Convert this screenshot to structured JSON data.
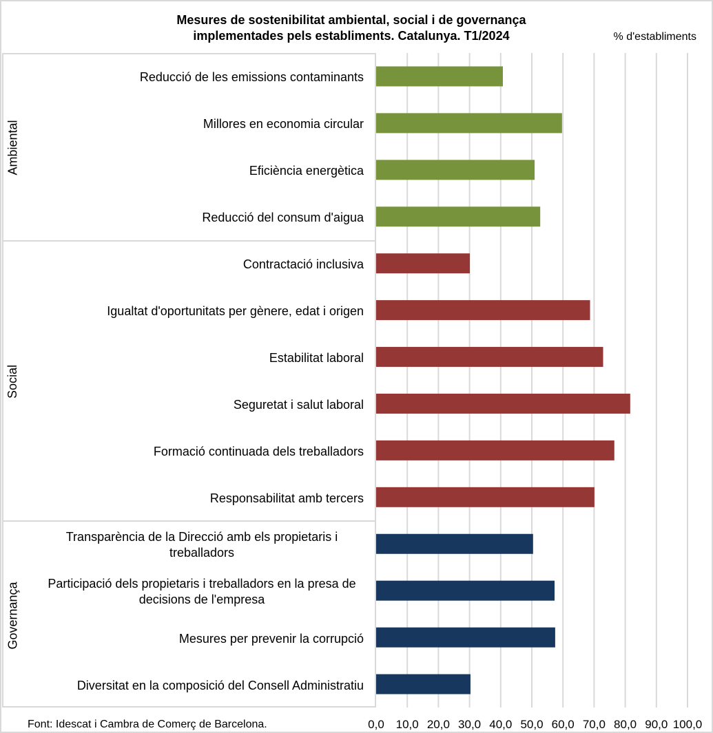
{
  "chart_data": {
    "type": "bar",
    "orientation": "horizontal",
    "title": "Mesures de sostenibilitat ambiental, social i de governança implementades pels establiments. Catalunya. T1/2024",
    "title_lines": [
      "Mesures de sostenibilitat  ambiental,  social i de governança",
      "implementades  pels establiments.  Catalunya.  T1/2024"
    ],
    "unit_label": "% d'establiments",
    "xlabel": "",
    "ylabel": "",
    "xlim": [
      0,
      100
    ],
    "x_ticks": [
      0,
      10,
      20,
      30,
      40,
      50,
      60,
      70,
      80,
      90,
      100
    ],
    "x_tick_labels": [
      "0,0",
      "10,0",
      "20,0",
      "30,0",
      "40,0",
      "50,0",
      "60,0",
      "70,0",
      "80,0",
      "90,0",
      "100,0"
    ],
    "grid": "vertical",
    "legend": "none",
    "groups": [
      {
        "name": "Ambiental",
        "color": "#77933c",
        "categories": [
          "Reducció de les emissions contaminants",
          "Millores en economia circular",
          "Eficiència energètica",
          "Reducció del consum d'aigua"
        ],
        "values": [
          40.7,
          59.7,
          50.9,
          52.7
        ]
      },
      {
        "name": "Social",
        "color": "#953735",
        "categories": [
          "Contractació inclusiva",
          "Igualtat d'oportunitats per gènere, edat i origen",
          "Estabilitat laboral",
          "Seguretat i salut laboral",
          "Formació continuada dels treballadors",
          "Responsabilitat amb tercers"
        ],
        "values": [
          30.1,
          68.7,
          72.9,
          81.6,
          76.5,
          70.1
        ]
      },
      {
        "name": "Governança",
        "color": "#17375e",
        "categories": [
          "Transparència de la Direcció amb els propietaris i treballadors",
          "Participació dels propietaris i treballadors en la presa de decisions de l'empresa",
          "Mesures per prevenir la corrupció",
          "Diversitat en la composició del Consell Administratiu"
        ],
        "values": [
          50.4,
          57.3,
          57.5,
          30.3
        ]
      }
    ],
    "source": "Font: Idescat i Cambra de Comerç de Barcelona."
  }
}
